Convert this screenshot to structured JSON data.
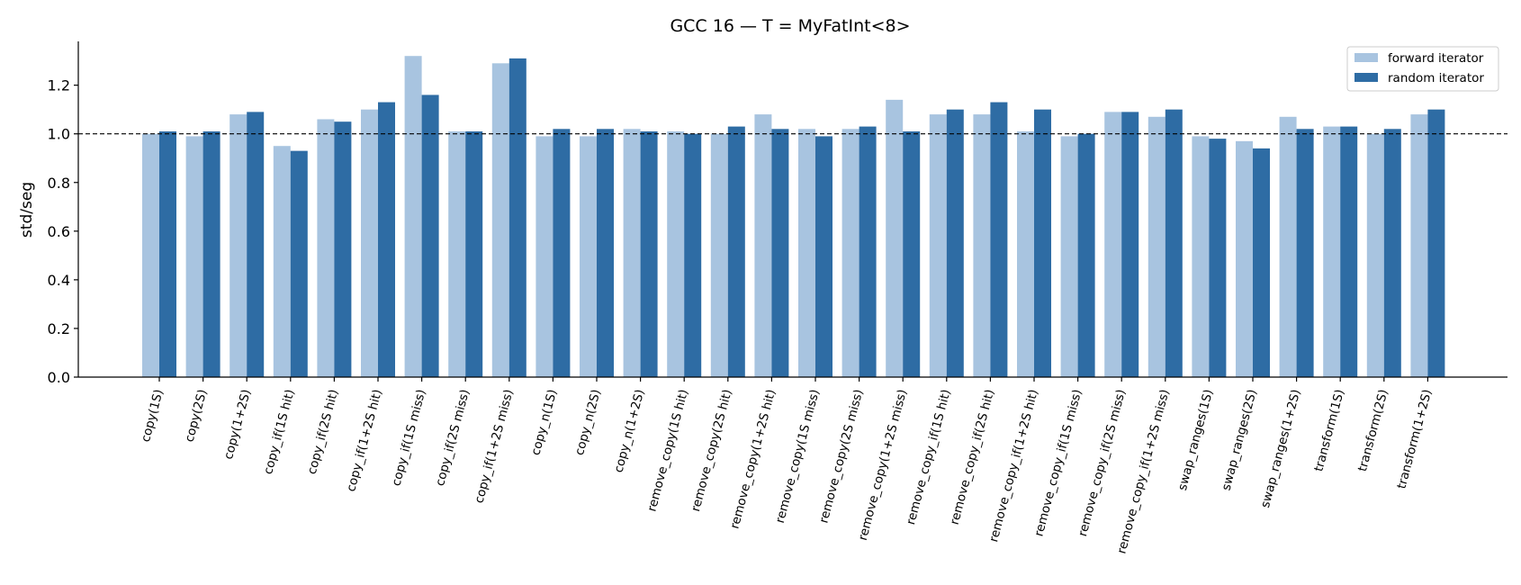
{
  "chart_data": {
    "type": "bar",
    "title": "GCC 16 — T = MyFatInt<8>",
    "xlabel": "",
    "ylabel": "std/seg",
    "ylim": [
      0,
      1.38
    ],
    "yticks": [
      "0.0",
      "0.2",
      "0.4",
      "0.6",
      "0.8",
      "1.0",
      "1.2"
    ],
    "reference_line": 1.0,
    "legend_position": "top-right",
    "grid": false,
    "categories": [
      "copy(1S)",
      "copy(2S)",
      "copy(1+2S)",
      "copy_if(1S hit)",
      "copy_if(2S hit)",
      "copy_if(1+2S hit)",
      "copy_if(1S miss)",
      "copy_if(2S miss)",
      "copy_if(1+2S miss)",
      "copy_n(1S)",
      "copy_n(2S)",
      "copy_n(1+2S)",
      "remove_copy(1S hit)",
      "remove_copy(2S hit)",
      "remove_copy(1+2S hit)",
      "remove_copy(1S miss)",
      "remove_copy(2S miss)",
      "remove_copy(1+2S miss)",
      "remove_copy_if(1S hit)",
      "remove_copy_if(2S hit)",
      "remove_copy_if(1+2S hit)",
      "remove_copy_if(1S miss)",
      "remove_copy_if(2S miss)",
      "remove_copy_if(1+2S miss)",
      "swap_ranges(1S)",
      "swap_ranges(2S)",
      "swap_ranges(1+2S)",
      "transform(1S)",
      "transform(2S)",
      "transform(1+2S)"
    ],
    "series": [
      {
        "name": "forward iterator",
        "color": "#a8c4e0",
        "values": [
          1.0,
          0.99,
          1.08,
          0.95,
          1.06,
          1.1,
          1.32,
          1.01,
          1.29,
          0.99,
          0.99,
          1.02,
          1.01,
          1.0,
          1.08,
          1.02,
          1.02,
          1.14,
          1.08,
          1.08,
          1.01,
          0.99,
          1.09,
          1.07,
          0.99,
          0.97,
          1.07,
          1.03,
          1.0,
          1.08
        ]
      },
      {
        "name": "random iterator",
        "color": "#2e6ca4",
        "values": [
          1.01,
          1.01,
          1.09,
          0.93,
          1.05,
          1.13,
          1.16,
          1.01,
          1.31,
          1.02,
          1.02,
          1.01,
          1.0,
          1.03,
          1.02,
          0.99,
          1.03,
          1.01,
          1.1,
          1.13,
          1.1,
          1.0,
          1.09,
          1.1,
          0.98,
          0.94,
          1.02,
          1.03,
          1.02,
          1.1
        ]
      }
    ]
  }
}
